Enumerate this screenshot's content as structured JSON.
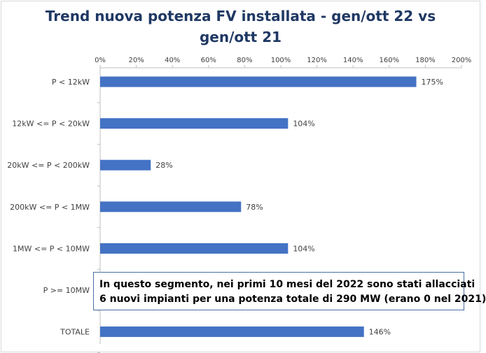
{
  "chart_data": {
    "type": "bar",
    "orientation": "horizontal",
    "title_lines": [
      "Trend nuova potenza FV installata - gen/ott 22 vs",
      "gen/ott 21"
    ],
    "categories": [
      "P < 12kW",
      "12kW <= P < 20kW",
      "20kW <= P < 200kW",
      "200kW <= P < 1MW",
      "1MW <= P < 10MW",
      "P >= 10MW",
      "TOTALE"
    ],
    "values": [
      1.75,
      1.04,
      0.28,
      0.78,
      1.04,
      null,
      1.46
    ],
    "data_labels": [
      "175%",
      "104%",
      "28%",
      "78%",
      "104%",
      "",
      "146%"
    ],
    "xlim": [
      0,
      2
    ],
    "x_ticks": [
      "0%",
      "20%",
      "40%",
      "60%",
      "80%",
      "100%",
      "120%",
      "140%",
      "160%",
      "180%",
      "200%"
    ],
    "axis_position": "top",
    "grid": false,
    "bar_color": "#4472c4",
    "annotation_lines": [
      "In questo segmento, nei primi 10 mesi del 2022 sono stati allacciati",
      "6 nuovi impianti per una potenza totale di 290 MW (erano 0 nel 2021)"
    ]
  }
}
